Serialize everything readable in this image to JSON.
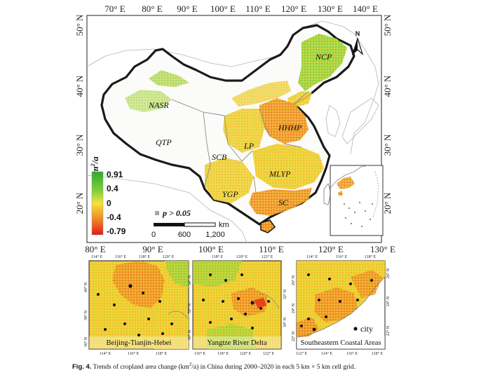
{
  "main_map": {
    "top_longitudes": [
      "70° E",
      "80° E",
      "90° E",
      "100° E",
      "110° E",
      "120° E",
      "130° E",
      "140° E"
    ],
    "bottom_longitudes": [
      "80° E",
      "90° E",
      "100° E",
      "110° E",
      "120° E",
      "130° E"
    ],
    "latitudes": [
      "50° N",
      "40° N",
      "30° N",
      "20° N"
    ],
    "regions": [
      "NCP",
      "NASR",
      "HHHP",
      "QTP",
      "SCB",
      "LP",
      "MLYP",
      "YGP",
      "SC"
    ],
    "north_arrow": "N",
    "legend": {
      "title_base": "km",
      "title_sup": "2",
      "title_rest": "/a",
      "values": [
        "0.91",
        "0.4",
        "0",
        "-0.4",
        "-0.79"
      ],
      "pvalue_label": "p > 0.05",
      "colors": [
        "#2eaa2e",
        "#7ed03a",
        "#f5e23a",
        "#f08a24",
        "#e31a1c"
      ]
    },
    "scalebar": {
      "ticks": [
        "0",
        "600",
        "1,200"
      ],
      "unit": "km"
    }
  },
  "insets": [
    {
      "label": "Beijing-Tianjin-Hebei",
      "top_ticks": [
        "114° E",
        "116° E",
        "118° E",
        "120° E"
      ],
      "bottom_ticks": [
        "114° E",
        "116° E",
        "118° E"
      ],
      "left_ticks": [
        "40° N",
        "38° N",
        "36° N"
      ]
    },
    {
      "label": "Yangtze River Delta",
      "top_ticks": [
        "118° E",
        "120° E",
        "122° E"
      ],
      "bottom_ticks": [
        "116° E",
        "118° E",
        "120° E",
        "122° E"
      ],
      "left_ticks": [
        "34° N",
        "32° N",
        "30° N"
      ],
      "right_ticks": [
        "32° N",
        "30° N"
      ]
    },
    {
      "label": "Southeastern Coastal Areas",
      "top_ticks": [
        "114° E",
        "116° E",
        "118° E"
      ],
      "bottom_ticks": [
        "112° E",
        "114° E",
        "116° E",
        "118° E"
      ],
      "left_ticks": [
        "26° N",
        "24° N",
        "22° N"
      ],
      "right_ticks": [
        "26° N",
        "24° N",
        "22° N"
      ],
      "city_legend": "city"
    }
  ],
  "caption": {
    "fig_label": "Fig. 4.",
    "text_a": "Trends of cropland area change (km",
    "text_sup": "2",
    "text_b": "/a) in China during 2000–2020 in each 5 km × 5 km cell grid."
  }
}
